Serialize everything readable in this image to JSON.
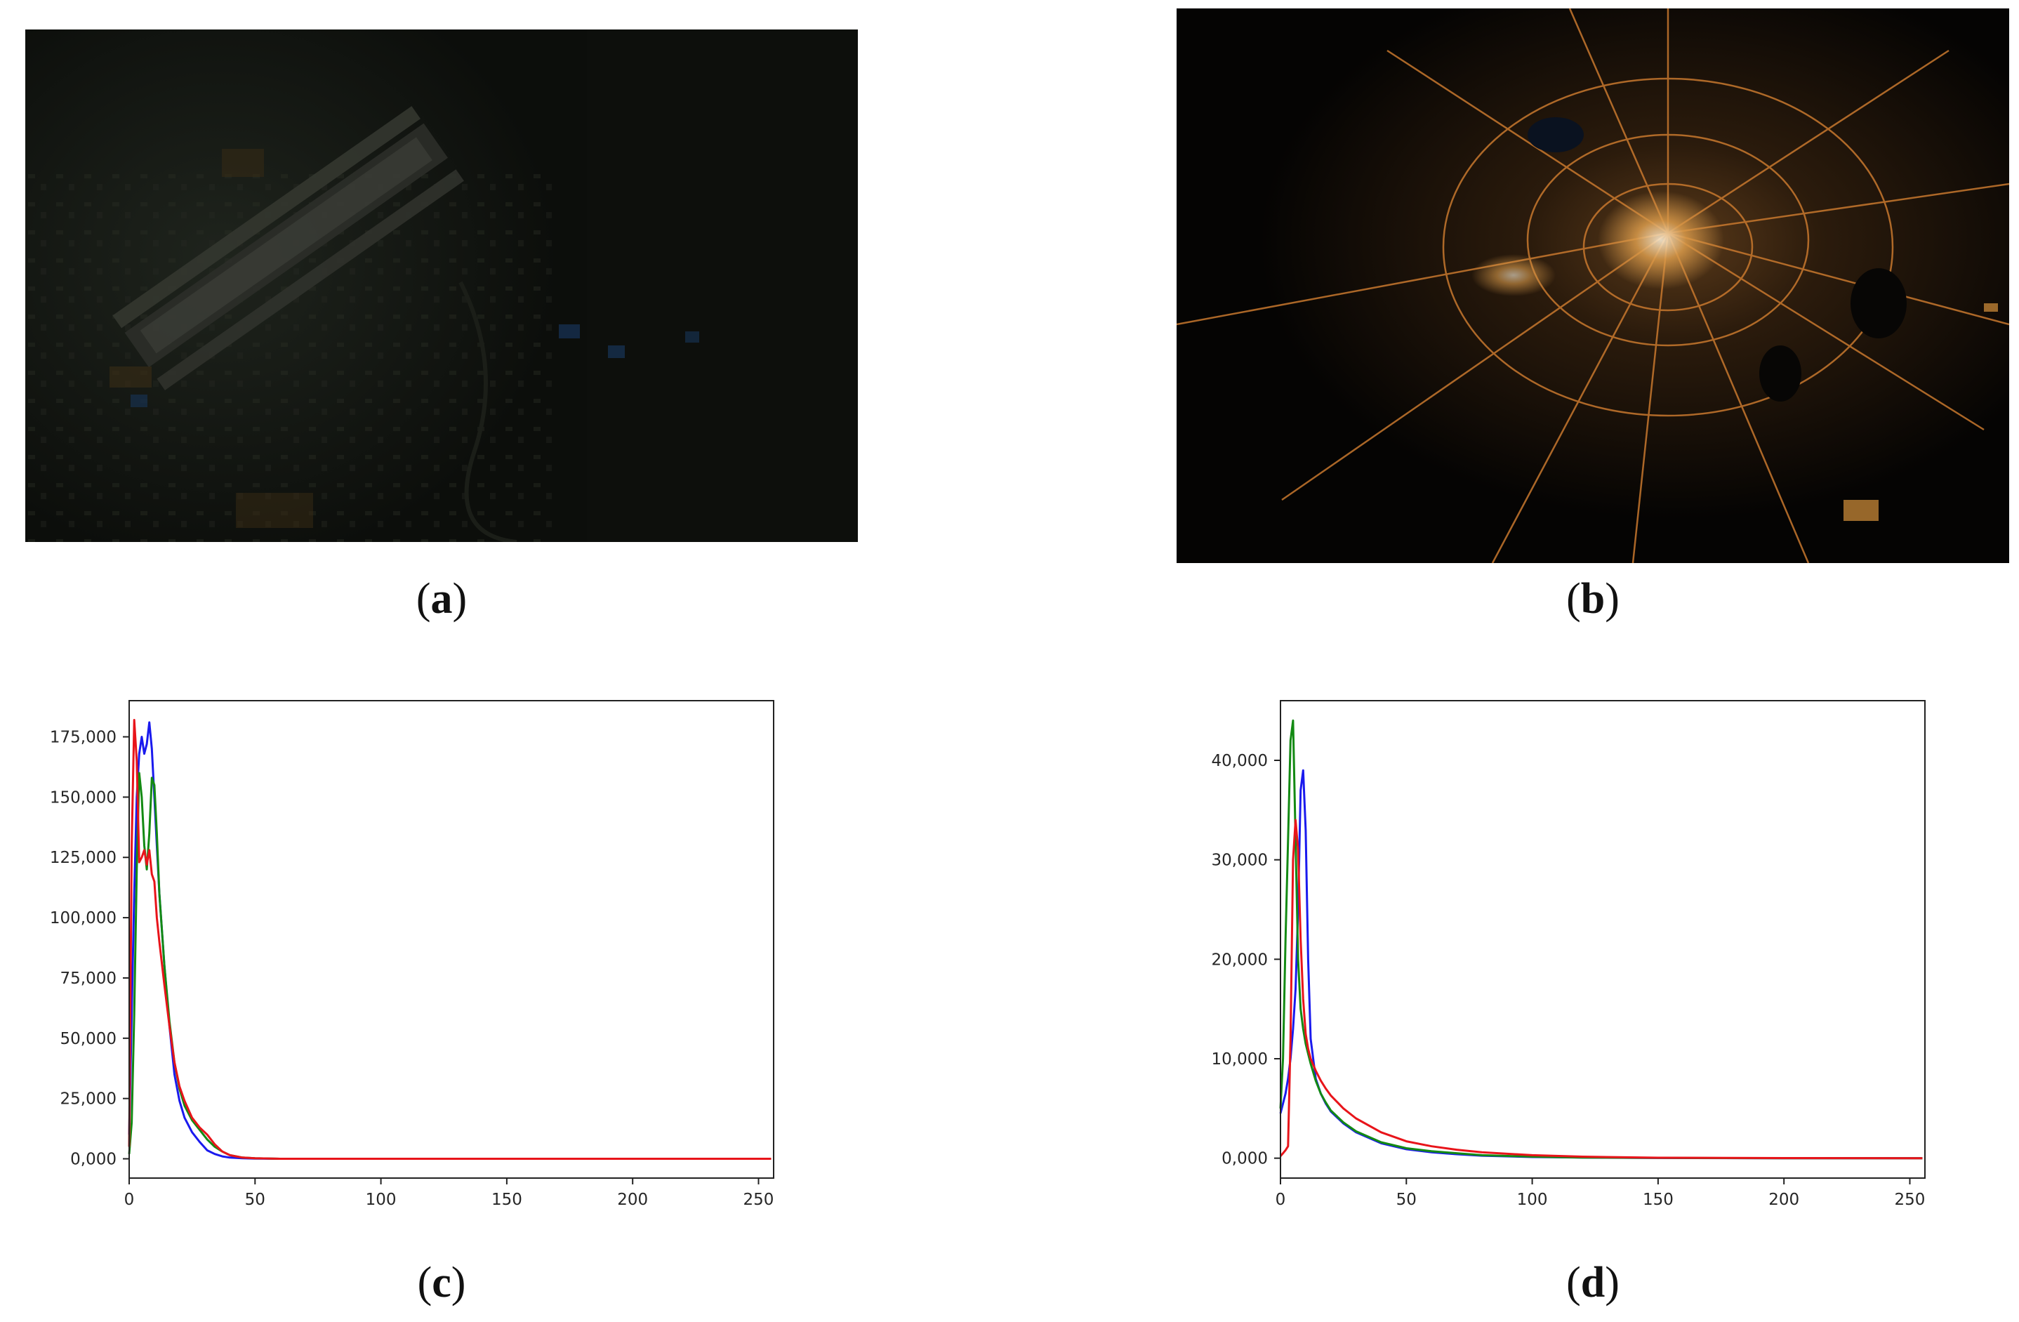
{
  "panels": {
    "a": {
      "label": "a",
      "description_type": "photo"
    },
    "b": {
      "label": "b",
      "description_type": "photo"
    },
    "c": {
      "label": "c"
    },
    "d": {
      "label": "d"
    }
  },
  "colors": {
    "red": "#e8141a",
    "green": "#138a13",
    "blue": "#1a1aee"
  },
  "chart_data": [
    {
      "id": "c",
      "type": "line",
      "title": "",
      "xlabel": "",
      "ylabel": "",
      "xlim": [
        0,
        256
      ],
      "ylim": [
        -8000,
        190000
      ],
      "xticks": [
        0,
        50,
        100,
        150,
        200,
        250
      ],
      "yticks": [
        0,
        25000,
        50000,
        75000,
        100000,
        125000,
        150000,
        175000
      ],
      "ytick_labels": [
        "0,000",
        "25,000",
        "50,000",
        "75,000",
        "100,000",
        "125,000",
        "150,000",
        "175,000"
      ],
      "grid": false,
      "series": [
        {
          "color": "blue",
          "x": [
            0,
            1,
            2,
            3,
            4,
            5,
            6,
            7,
            8,
            9,
            10,
            11,
            12,
            14,
            16,
            18,
            20,
            22,
            25,
            28,
            31,
            34,
            37,
            40,
            45,
            50,
            60,
            80,
            100,
            150,
            200,
            255
          ],
          "y": [
            10000,
            60000,
            110000,
            150000,
            168000,
            175000,
            168000,
            172000,
            181000,
            170000,
            150000,
            130000,
            110000,
            80000,
            55000,
            35000,
            24000,
            17000,
            11000,
            7000,
            3500,
            2000,
            1000,
            500,
            200,
            100,
            0,
            0,
            0,
            0,
            0,
            0
          ]
        },
        {
          "color": "green",
          "x": [
            0,
            1,
            2,
            3,
            4,
            5,
            6,
            7,
            8,
            9,
            10,
            11,
            12,
            14,
            16,
            18,
            20,
            22,
            25,
            28,
            31,
            34,
            37,
            40,
            45,
            50,
            60,
            80,
            100,
            150,
            200,
            255
          ],
          "y": [
            2000,
            15000,
            60000,
            120000,
            160000,
            150000,
            130000,
            120000,
            135000,
            158000,
            155000,
            135000,
            110000,
            80000,
            57000,
            40000,
            29000,
            22000,
            16000,
            12000,
            8000,
            5000,
            3000,
            1500,
            500,
            200,
            0,
            0,
            0,
            0,
            0,
            0
          ]
        },
        {
          "color": "red",
          "x": [
            0,
            1,
            2,
            3,
            4,
            5,
            6,
            7,
            8,
            9,
            10,
            11,
            12,
            14,
            16,
            18,
            20,
            22,
            25,
            28,
            31,
            34,
            37,
            40,
            45,
            50,
            60,
            80,
            100,
            150,
            200,
            255
          ],
          "y": [
            5000,
            130000,
            182000,
            165000,
            123000,
            125000,
            128000,
            122000,
            128000,
            118000,
            115000,
            100000,
            90000,
            72000,
            55000,
            40000,
            30000,
            24000,
            17000,
            13000,
            10000,
            6000,
            3000,
            1500,
            500,
            200,
            0,
            0,
            0,
            0,
            0,
            0
          ]
        }
      ]
    },
    {
      "id": "d",
      "type": "line",
      "title": "",
      "xlabel": "",
      "ylabel": "",
      "xlim": [
        0,
        256
      ],
      "ylim": [
        -2000,
        46000
      ],
      "xticks": [
        0,
        50,
        100,
        150,
        200,
        250
      ],
      "yticks": [
        0,
        10000,
        20000,
        30000,
        40000
      ],
      "ytick_labels": [
        "0,000",
        "10,000",
        "20,000",
        "30,000",
        "40,000"
      ],
      "grid": false,
      "series": [
        {
          "color": "blue",
          "x": [
            0,
            1,
            2,
            3,
            4,
            5,
            6,
            7,
            8,
            9,
            10,
            11,
            12,
            14,
            16,
            18,
            20,
            25,
            30,
            40,
            50,
            60,
            70,
            80,
            100,
            120,
            150,
            200,
            255
          ],
          "y": [
            4500,
            5500,
            6500,
            8000,
            10000,
            13000,
            17000,
            25000,
            37000,
            39000,
            33000,
            20000,
            12000,
            8000,
            6500,
            5500,
            4700,
            3500,
            2600,
            1500,
            900,
            600,
            400,
            250,
            120,
            60,
            20,
            0,
            0
          ]
        },
        {
          "color": "green",
          "x": [
            0,
            1,
            2,
            3,
            4,
            5,
            6,
            7,
            8,
            9,
            10,
            11,
            12,
            14,
            16,
            18,
            20,
            25,
            30,
            40,
            50,
            60,
            70,
            80,
            100,
            120,
            150,
            200,
            255
          ],
          "y": [
            5000,
            10000,
            22000,
            32000,
            42000,
            44000,
            32000,
            20000,
            15000,
            13000,
            11500,
            10500,
            9500,
            7800,
            6500,
            5600,
            4800,
            3600,
            2700,
            1600,
            1000,
            700,
            500,
            300,
            150,
            70,
            25,
            0,
            0
          ]
        },
        {
          "color": "red",
          "x": [
            0,
            1,
            2,
            3,
            4,
            5,
            6,
            7,
            8,
            9,
            10,
            11,
            12,
            14,
            16,
            18,
            20,
            25,
            30,
            40,
            50,
            60,
            70,
            80,
            100,
            120,
            150,
            200,
            255
          ],
          "y": [
            200,
            500,
            800,
            1200,
            12000,
            30000,
            34000,
            31000,
            22000,
            16000,
            12500,
            11000,
            10000,
            8800,
            7800,
            7000,
            6300,
            5000,
            4000,
            2600,
            1700,
            1200,
            850,
            600,
            300,
            150,
            50,
            10,
            0
          ]
        }
      ]
    }
  ]
}
